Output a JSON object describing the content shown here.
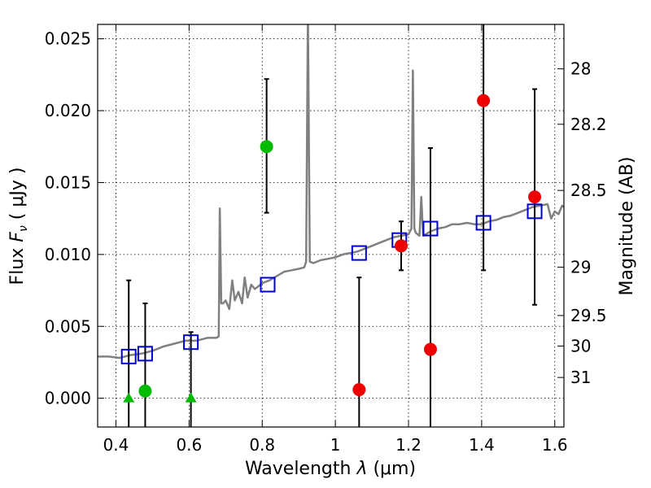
{
  "chart_data": {
    "type": "scatter",
    "xlabel": "Wavelength  λ (μm)",
    "ylabel": "Flux  F_ν  ( μJy )",
    "ylabel_parts": {
      "prefix": "Flux  ",
      "symbol": "F",
      "subscript": "ν",
      "suffix": "  ( μJy )"
    },
    "xlabel_parts": {
      "prefix": "Wavelength  ",
      "symbol": "λ",
      "suffix": " (μm)"
    },
    "y2label": "Magnitude (AB)",
    "xlim": [
      0.35,
      1.625
    ],
    "ylim": [
      -0.002,
      0.026
    ],
    "grid": true,
    "x_ticks": [
      {
        "value": 0.4,
        "label": "0.4"
      },
      {
        "value": 0.6,
        "label": "0.6"
      },
      {
        "value": 0.8,
        "label": "0.8"
      },
      {
        "value": 1.0,
        "label": "1"
      },
      {
        "value": 1.2,
        "label": "1.2"
      },
      {
        "value": 1.4,
        "label": "1.4"
      },
      {
        "value": 1.6,
        "label": "1.6"
      }
    ],
    "y_ticks": [
      {
        "value": 0.0,
        "label": "0.000"
      },
      {
        "value": 0.005,
        "label": "0.005"
      },
      {
        "value": 0.01,
        "label": "0.010"
      },
      {
        "value": 0.015,
        "label": "0.015"
      },
      {
        "value": 0.02,
        "label": "0.020"
      },
      {
        "value": 0.025,
        "label": "0.025"
      }
    ],
    "mag_ticks": [
      {
        "value": 28,
        "label": "28"
      },
      {
        "value": 28.2,
        "label": "28.2"
      },
      {
        "value": 28.5,
        "label": "28.5"
      },
      {
        "value": 29,
        "label": "29"
      },
      {
        "value": 29.5,
        "label": "29.5"
      },
      {
        "value": 30,
        "label": "30"
      },
      {
        "value": 31,
        "label": "31"
      }
    ],
    "colors": {
      "template": "#808080",
      "model": "#0000cc",
      "green": "#00bb00",
      "red": "#ee0000",
      "errorbar": "#000000"
    },
    "series": [
      {
        "name": "template-spectrum",
        "kind": "line",
        "points": [
          [
            0.35,
            0.0029
          ],
          [
            0.38,
            0.0029
          ],
          [
            0.41,
            0.0028
          ],
          [
            0.44,
            0.003
          ],
          [
            0.47,
            0.0031
          ],
          [
            0.5,
            0.0033
          ],
          [
            0.53,
            0.0036
          ],
          [
            0.56,
            0.0038
          ],
          [
            0.59,
            0.004
          ],
          [
            0.62,
            0.004
          ],
          [
            0.65,
            0.0042
          ],
          [
            0.675,
            0.0042
          ],
          [
            0.681,
            0.0043
          ],
          [
            0.684,
            0.0132
          ],
          [
            0.688,
            0.0066
          ],
          [
            0.693,
            0.0066
          ],
          [
            0.7,
            0.0068
          ],
          [
            0.71,
            0.0062
          ],
          [
            0.718,
            0.0082
          ],
          [
            0.725,
            0.0068
          ],
          [
            0.735,
            0.0074
          ],
          [
            0.745,
            0.0066
          ],
          [
            0.752,
            0.0084
          ],
          [
            0.76,
            0.007
          ],
          [
            0.77,
            0.0079
          ],
          [
            0.78,
            0.0076
          ],
          [
            0.79,
            0.0078
          ],
          [
            0.8,
            0.008
          ],
          [
            0.82,
            0.0082
          ],
          [
            0.84,
            0.0085
          ],
          [
            0.86,
            0.0088
          ],
          [
            0.88,
            0.0089
          ],
          [
            0.9,
            0.009
          ],
          [
            0.915,
            0.0091
          ],
          [
            0.92,
            0.0095
          ],
          [
            0.925,
            0.027
          ],
          [
            0.93,
            0.0095
          ],
          [
            0.94,
            0.0094
          ],
          [
            0.96,
            0.0096
          ],
          [
            0.98,
            0.0097
          ],
          [
            1.0,
            0.0098
          ],
          [
            1.02,
            0.01
          ],
          [
            1.04,
            0.0101
          ],
          [
            1.06,
            0.0102
          ],
          [
            1.08,
            0.0104
          ],
          [
            1.1,
            0.0106
          ],
          [
            1.12,
            0.0108
          ],
          [
            1.14,
            0.011
          ],
          [
            1.16,
            0.0112
          ],
          [
            1.18,
            0.0113
          ],
          [
            1.2,
            0.0114
          ],
          [
            1.208,
            0.0118
          ],
          [
            1.212,
            0.0228
          ],
          [
            1.216,
            0.0118
          ],
          [
            1.22,
            0.0115
          ],
          [
            1.23,
            0.0113
          ],
          [
            1.235,
            0.014
          ],
          [
            1.24,
            0.0113
          ],
          [
            1.26,
            0.0116
          ],
          [
            1.28,
            0.0118
          ],
          [
            1.3,
            0.0119
          ],
          [
            1.32,
            0.0121
          ],
          [
            1.34,
            0.0121
          ],
          [
            1.36,
            0.0122
          ],
          [
            1.38,
            0.0121
          ],
          [
            1.4,
            0.0121
          ],
          [
            1.42,
            0.0123
          ],
          [
            1.44,
            0.0124
          ],
          [
            1.46,
            0.0126
          ],
          [
            1.48,
            0.0127
          ],
          [
            1.5,
            0.0129
          ],
          [
            1.52,
            0.0131
          ],
          [
            1.54,
            0.0133
          ],
          [
            1.56,
            0.0134
          ],
          [
            1.58,
            0.0135
          ],
          [
            1.59,
            0.0125
          ],
          [
            1.6,
            0.013
          ],
          [
            1.61,
            0.0128
          ],
          [
            1.62,
            0.0134
          ],
          [
            1.625,
            0.0133
          ]
        ]
      },
      {
        "name": "model-photometry",
        "kind": "open-square",
        "points": [
          [
            0.435,
            0.0029
          ],
          [
            0.48,
            0.0031
          ],
          [
            0.605,
            0.0039
          ],
          [
            0.815,
            0.0079
          ],
          [
            1.065,
            0.0101
          ],
          [
            1.175,
            0.011
          ],
          [
            1.26,
            0.0118
          ],
          [
            1.405,
            0.0122
          ],
          [
            1.545,
            0.013
          ]
        ]
      },
      {
        "name": "optical-detections",
        "kind": "green-circle",
        "points": [
          {
            "x": 0.48,
            "y": 0.0005,
            "err": 0.0061,
            "err_hi": 0.0066,
            "err_lo": -0.0035
          },
          {
            "x": 0.812,
            "y": 0.0175,
            "err_hi": 0.0222,
            "err_lo": 0.0129
          }
        ]
      },
      {
        "name": "optical-upper-limits",
        "kind": "green-triangle",
        "points": [
          {
            "x": 0.435,
            "y": 0.0,
            "err_hi": 0.0082,
            "err_lo": -0.0035
          },
          {
            "x": 0.605,
            "y": 0.0,
            "err_hi": 0.0046,
            "err_lo": -0.0035
          }
        ]
      },
      {
        "name": "nir-detections",
        "kind": "red-circle",
        "points": [
          {
            "x": 1.065,
            "y": 0.0006,
            "err_hi": 0.0084,
            "err_lo": -0.0035
          },
          {
            "x": 1.18,
            "y": 0.0106,
            "err_hi": 0.0123,
            "err_lo": 0.0089
          },
          {
            "x": 1.26,
            "y": 0.0034,
            "err_hi": 0.0174,
            "err_lo": -0.0035
          },
          {
            "x": 1.405,
            "y": 0.0207,
            "err_hi": 0.03,
            "err_lo": 0.0089
          },
          {
            "x": 1.545,
            "y": 0.014,
            "err_hi": 0.0215,
            "err_lo": 0.0065
          }
        ]
      }
    ]
  }
}
